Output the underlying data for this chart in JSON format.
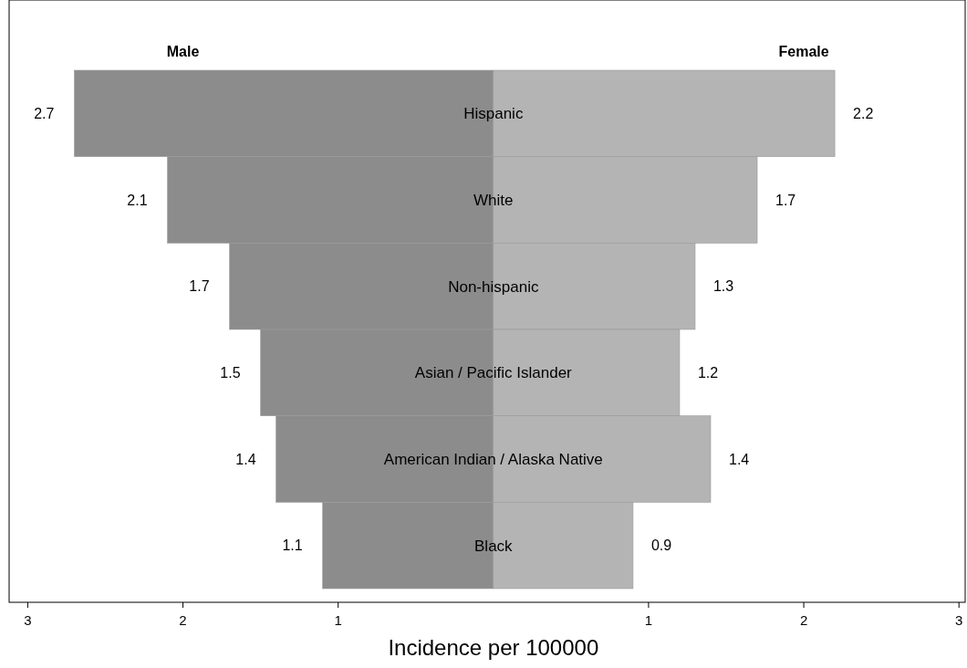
{
  "chart_data": {
    "type": "bar",
    "orientation": "horizontal",
    "xlabel": "Incidence per 100000",
    "categories": [
      "Hispanic",
      "White",
      "Non-hispanic",
      "Asian / Pacific Islander",
      "American Indian / Alaska Native",
      "Black"
    ],
    "series": [
      {
        "name": "Male",
        "color": "#8c8c8c",
        "base": [
          -2.7,
          -2.1,
          -1.7,
          -1.5,
          -1.4,
          -1.1
        ],
        "values": [
          2.7,
          2.1,
          1.7,
          1.5,
          1.4,
          1.1
        ]
      },
      {
        "name": "Female",
        "color": "#b4b4b4",
        "values": [
          2.2,
          1.7,
          1.3,
          1.2,
          1.4,
          0.9
        ]
      }
    ],
    "data_labels": true,
    "xlim": [
      -3.12,
      3.04
    ],
    "xticks": [
      {
        "value": -3,
        "label": "3"
      },
      {
        "value": -2,
        "label": "2"
      },
      {
        "value": -1,
        "label": "1"
      },
      {
        "value": 1,
        "label": "1"
      },
      {
        "value": 2,
        "label": "2"
      },
      {
        "value": 3,
        "label": "3"
      }
    ],
    "grid": false,
    "legend": false
  }
}
